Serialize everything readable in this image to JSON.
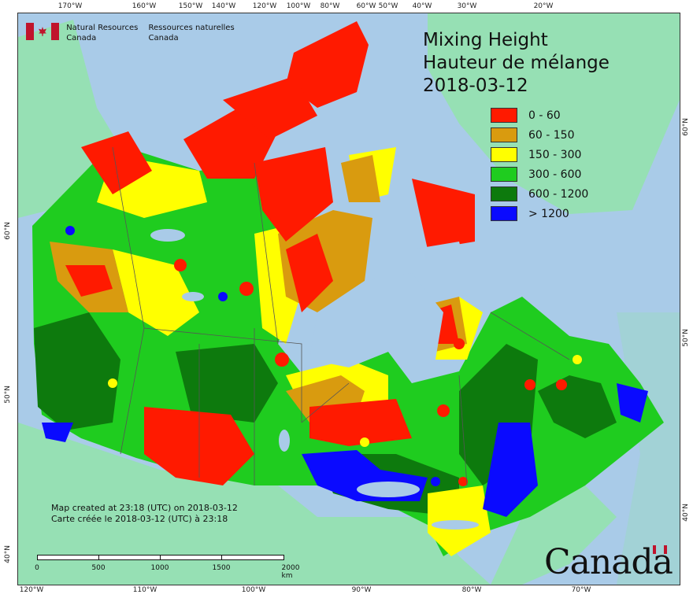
{
  "header": {
    "org_en_line1": "Natural Resources",
    "org_en_line2": "Canada",
    "org_fr_line1": "Ressources naturelles",
    "org_fr_line2": "Canada"
  },
  "title": {
    "line1": "Mixing Height",
    "line2": "Hauteur de mélange",
    "date": "2018-03-12"
  },
  "legend": [
    {
      "label": "0 - 60",
      "color": "#ff1a00"
    },
    {
      "label": "60 - 150",
      "color": "#d99b0f"
    },
    {
      "label": "150 - 300",
      "color": "#ffff00"
    },
    {
      "label": "300 - 600",
      "color": "#1fcc1f"
    },
    {
      "label": "600 - 1200",
      "color": "#0d7a0d"
    },
    {
      "label": "> 1200",
      "color": "#0a0aff"
    }
  ],
  "credit": {
    "line1": "Map created at 23:18 (UTC) on 2018-03-12",
    "line2": "Carte créée le 2018-03-12 (UTC) à 23:18"
  },
  "scale": {
    "labels": [
      "0",
      "500",
      "1000",
      "1500",
      "2000  km"
    ]
  },
  "axes": {
    "top": [
      "170°W",
      "160°W",
      "150°W",
      "140°W",
      "120°W",
      "100°W",
      "80°W",
      "60°W",
      "50°W",
      "40°W",
      "30°W",
      "20°W"
    ],
    "bottom": [
      "120°W",
      "110°W",
      "100°W",
      "90°W",
      "80°W",
      "70°W"
    ],
    "left": [
      "60°N",
      "50°N",
      "40°N"
    ],
    "right": [
      "60°N",
      "50°N",
      "40°N"
    ]
  },
  "wordmark": "Canada",
  "colors": {
    "ocean": "#a9cbe8",
    "foreign_land": "#96e0b4"
  }
}
